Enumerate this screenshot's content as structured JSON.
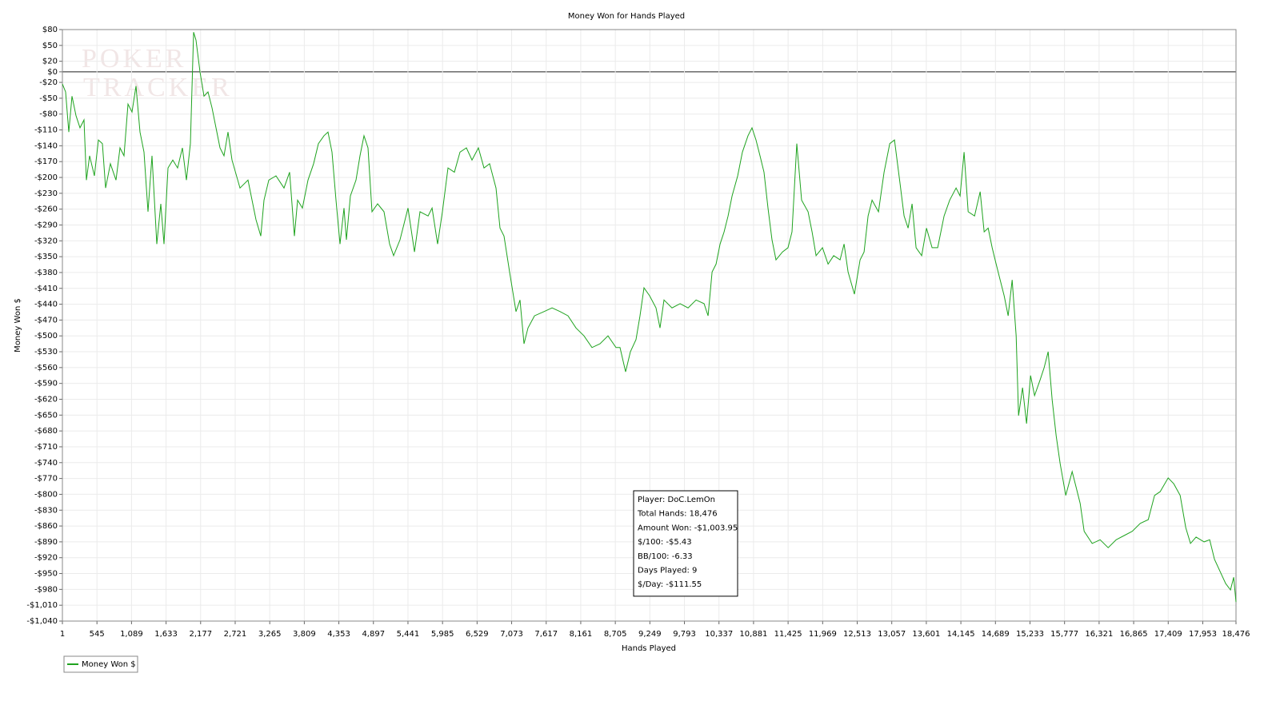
{
  "chart_data": {
    "type": "line",
    "title": "Money Won for Hands Played",
    "x_label": "Hands Played",
    "y_label": "Money Won $",
    "watermark": [
      "POKER",
      "TRACKER"
    ],
    "grid": true,
    "legend_position": "bottom-left",
    "xlim": [
      1,
      18476
    ],
    "ylim": [
      -1040,
      80
    ],
    "xticks": [
      1,
      545,
      {
        "value": 1089,
        "label": "1,089"
      },
      {
        "value": 1633,
        "label": "1,633"
      },
      {
        "value": 2177,
        "label": "2,177"
      },
      {
        "value": 2721,
        "label": "2,721"
      },
      {
        "value": 3265,
        "label": "3,265"
      },
      {
        "value": 3809,
        "label": "3,809"
      },
      {
        "value": 4353,
        "label": "4,353"
      },
      {
        "value": 4897,
        "label": "4,897"
      },
      {
        "value": 5441,
        "label": "5,441"
      },
      {
        "value": 5985,
        "label": "5,985"
      },
      {
        "value": 6529,
        "label": "6,529"
      },
      {
        "value": 7073,
        "label": "7,073"
      },
      {
        "value": 7617,
        "label": "7,617"
      },
      {
        "value": 8161,
        "label": "8,161"
      },
      {
        "value": 8705,
        "label": "8,705"
      },
      {
        "value": 9249,
        "label": "9,249"
      },
      {
        "value": 9793,
        "label": "9,793"
      },
      {
        "value": 10337,
        "label": "10,337"
      },
      {
        "value": 10881,
        "label": "10,881"
      },
      {
        "value": 11425,
        "label": "11,425"
      },
      {
        "value": 11969,
        "label": "11,969"
      },
      {
        "value": 12513,
        "label": "12,513"
      },
      {
        "value": 13057,
        "label": "13,057"
      },
      {
        "value": 13601,
        "label": "13,601"
      },
      {
        "value": 14145,
        "label": "14,145"
      },
      {
        "value": 14689,
        "label": "14,689"
      },
      {
        "value": 15233,
        "label": "15,233"
      },
      {
        "value": 15777,
        "label": "15,777"
      },
      {
        "value": 16321,
        "label": "16,321"
      },
      {
        "value": 16865,
        "label": "16,865"
      },
      {
        "value": 17409,
        "label": "17,409"
      },
      {
        "value": 17953,
        "label": "17,953"
      },
      {
        "value": 18476,
        "label": "18,476"
      }
    ],
    "yticks": [
      {
        "value": 80,
        "label": "$80"
      },
      {
        "value": 50,
        "label": "$50"
      },
      {
        "value": 20,
        "label": "$20"
      },
      {
        "value": 0,
        "label": "$0"
      },
      {
        "value": -20,
        "label": "-$20"
      },
      {
        "value": -50,
        "label": "-$50"
      },
      {
        "value": -80,
        "label": "-$80"
      },
      {
        "value": -110,
        "label": "-$110"
      },
      {
        "value": -140,
        "label": "-$140"
      },
      {
        "value": -170,
        "label": "-$170"
      },
      {
        "value": -200,
        "label": "-$200"
      },
      {
        "value": -230,
        "label": "-$230"
      },
      {
        "value": -260,
        "label": "-$260"
      },
      {
        "value": -290,
        "label": "-$290"
      },
      {
        "value": -320,
        "label": "-$320"
      },
      {
        "value": -350,
        "label": "-$350"
      },
      {
        "value": -380,
        "label": "-$380"
      },
      {
        "value": -410,
        "label": "-$410"
      },
      {
        "value": -440,
        "label": "-$440"
      },
      {
        "value": -470,
        "label": "-$470"
      },
      {
        "value": -500,
        "label": "-$500"
      },
      {
        "value": -530,
        "label": "-$530"
      },
      {
        "value": -560,
        "label": "-$560"
      },
      {
        "value": -590,
        "label": "-$590"
      },
      {
        "value": -620,
        "label": "-$620"
      },
      {
        "value": -650,
        "label": "-$650"
      },
      {
        "value": -680,
        "label": "-$680"
      },
      {
        "value": -710,
        "label": "-$710"
      },
      {
        "value": -740,
        "label": "-$740"
      },
      {
        "value": -770,
        "label": "-$770"
      },
      {
        "value": -800,
        "label": "-$800"
      },
      {
        "value": -830,
        "label": "-$830"
      },
      {
        "value": -860,
        "label": "-$860"
      },
      {
        "value": -890,
        "label": "-$890"
      },
      {
        "value": -920,
        "label": "-$920"
      },
      {
        "value": -950,
        "label": "-$950"
      },
      {
        "value": -980,
        "label": "-$980"
      },
      {
        "value": -1010,
        "label": "-$1,010"
      },
      {
        "value": -1040,
        "label": "-$1,040"
      }
    ],
    "stats": [
      "Player: DoC.LemOn",
      "Total Hands: 18,476",
      "Amount Won: -$1,003.95",
      "$/100: -$5.43",
      "BB/100: -6.33",
      "Days Played: 9",
      "$/Day: -$111.55"
    ],
    "x": [
      1,
      51,
      102,
      152,
      215,
      278,
      341,
      379,
      429,
      505,
      568,
      631,
      681,
      757,
      845,
      908,
      971,
      1034,
      1097,
      1160,
      1223,
      1286,
      1349,
      1412,
      1487,
      1550,
      1600,
      1663,
      1739,
      1815,
      1890,
      1953,
      2016,
      2066,
      2104,
      2167,
      2230,
      2293,
      2356,
      2419,
      2482,
      2545,
      2608,
      2671,
      2797,
      2923,
      3049,
      3124,
      3175,
      3250,
      3363,
      3489,
      3578,
      3653,
      3704,
      3779,
      3867,
      3955,
      4031,
      4119,
      4182,
      4245,
      4308,
      4371,
      4434,
      4472,
      4535,
      4623,
      4686,
      4749,
      4812,
      4875,
      4963,
      5064,
      5152,
      5215,
      5316,
      5442,
      5543,
      5631,
      5757,
      5820,
      5908,
      5983,
      6071,
      6172,
      6260,
      6361,
      6449,
      6550,
      6638,
      6726,
      6827,
      6890,
      6953,
      7041,
      7142,
      7205,
      7268,
      7331,
      7432,
      7583,
      7709,
      7835,
      7960,
      8086,
      8212,
      8338,
      8464,
      8590,
      8716,
      8779,
      8867,
      8943,
      9031,
      9094,
      9157,
      9245,
      9346,
      9409,
      9472,
      9598,
      9724,
      9850,
      9976,
      10102,
      10165,
      10228,
      10291,
      10354,
      10417,
      10480,
      10543,
      10631,
      10706,
      10794,
      10857,
      10920,
      10983,
      11046,
      11109,
      11172,
      11235,
      11336,
      11424,
      11487,
      11562,
      11638,
      11739,
      11802,
      11865,
      11966,
      12054,
      12142,
      12243,
      12306,
      12369,
      12469,
      12558,
      12621,
      12684,
      12747,
      12848,
      12936,
      13025,
      13100,
      13188,
      13251,
      13314,
      13377,
      13440,
      13528,
      13604,
      13692,
      13780,
      13881,
      13969,
      14070,
      14133,
      14196,
      14259,
      14360,
      14448,
      14511,
      14574,
      14637,
      14700,
      14763,
      14826,
      14889,
      14952,
      15015,
      15053,
      15116,
      15179,
      15242,
      15305,
      15393,
      15456,
      15519,
      15582,
      15645,
      15708,
      15796,
      15897,
      15960,
      16023,
      16086,
      16212,
      16338,
      16464,
      16590,
      16716,
      16842,
      16968,
      17094,
      17194,
      17282,
      17408,
      17496,
      17597,
      17685,
      17760,
      17848,
      17974,
      18062,
      18137,
      18225,
      18313,
      18389,
      18439,
      18476
    ],
    "series": [
      {
        "name": "Money Won $",
        "color": "#1fa31f",
        "values": [
          -23,
          -38,
          -114,
          -46,
          -83,
          -106,
          -91,
          -205,
          -159,
          -197,
          -129,
          -136,
          -220,
          -174,
          -205,
          -144,
          -159,
          -61,
          -76,
          -27,
          -114,
          -152,
          -265,
          -159,
          -326,
          -250,
          -326,
          -182,
          -167,
          -182,
          -144,
          -205,
          -136,
          75,
          60,
          0,
          -46,
          -38,
          -68,
          -106,
          -144,
          -159,
          -114,
          -167,
          -220,
          -205,
          -280,
          -311,
          -243,
          -205,
          -197,
          -220,
          -190,
          -311,
          -243,
          -258,
          -205,
          -174,
          -136,
          -121,
          -114,
          -152,
          -243,
          -326,
          -258,
          -318,
          -235,
          -205,
          -159,
          -121,
          -144,
          -265,
          -250,
          -265,
          -326,
          -348,
          -318,
          -258,
          -341,
          -265,
          -273,
          -258,
          -326,
          -265,
          -182,
          -190,
          -152,
          -144,
          -167,
          -144,
          -182,
          -174,
          -220,
          -296,
          -311,
          -379,
          -454,
          -432,
          -515,
          -485,
          -462,
          -454,
          -447,
          -454,
          -462,
          -485,
          -500,
          -522,
          -515,
          -500,
          -522,
          -522,
          -568,
          -530,
          -507,
          -462,
          -409,
          -424,
          -447,
          -485,
          -432,
          -447,
          -439,
          -447,
          -432,
          -439,
          -462,
          -379,
          -364,
          -326,
          -303,
          -273,
          -235,
          -197,
          -152,
          -121,
          -106,
          -129,
          -159,
          -190,
          -258,
          -318,
          -356,
          -341,
          -333,
          -303,
          -136,
          -243,
          -265,
          -303,
          -348,
          -333,
          -364,
          -348,
          -356,
          -326,
          -379,
          -421,
          -356,
          -341,
          -273,
          -243,
          -265,
          -190,
          -136,
          -129,
          -212,
          -273,
          -296,
          -250,
          -333,
          -348,
          -296,
          -333,
          -333,
          -273,
          -243,
          -220,
          -235,
          -152,
          -265,
          -273,
          -227,
          -303,
          -296,
          -333,
          -364,
          -394,
          -424,
          -462,
          -394,
          -500,
          -651,
          -598,
          -666,
          -575,
          -613,
          -583,
          -560,
          -530,
          -621,
          -689,
          -742,
          -802,
          -757,
          -787,
          -817,
          -870,
          -893,
          -886,
          -901,
          -886,
          -878,
          -870,
          -855,
          -848,
          -802,
          -795,
          -769,
          -780,
          -802,
          -863,
          -893,
          -881,
          -890,
          -886,
          -923,
          -946,
          -969,
          -981,
          -957,
          -1003.95
        ]
      }
    ]
  }
}
